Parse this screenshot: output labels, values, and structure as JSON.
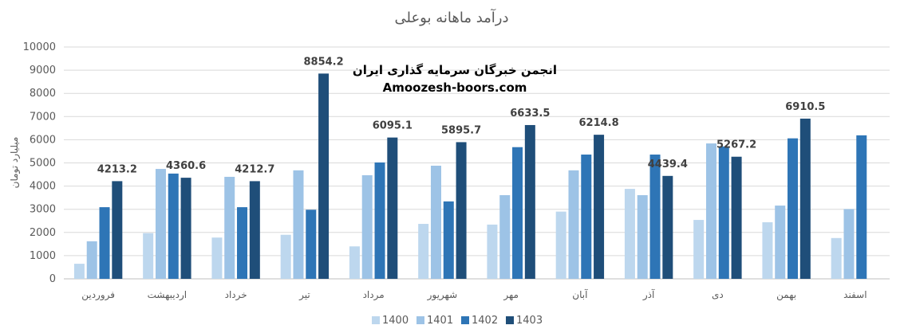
{
  "chart_data": {
    "type": "bar",
    "title": "درآمد ماهانه بوعلی",
    "ylabel": "میلیارد تومان",
    "xlabel": "",
    "ylim": [
      0,
      10000
    ],
    "yticks": [
      "0",
      "1000",
      "2000",
      "3000",
      "4000",
      "5000",
      "6000",
      "7000",
      "8000",
      "9000",
      "10000"
    ],
    "grid": true,
    "legend_position": "bottom",
    "categories": [
      "فروردین",
      "اردیبهشت",
      "خرداد",
      "تیر",
      "مرداد",
      "شهریور",
      "مهر",
      "آبان",
      "آذر",
      "دی",
      "بهمن",
      "اسفند"
    ],
    "series": [
      {
        "name": "1400",
        "color": "#bdd7ee",
        "values": [
          650,
          1970,
          1780,
          1900,
          1400,
          2370,
          2340,
          2900,
          3880,
          2540,
          2440,
          1760
        ]
      },
      {
        "name": "1401",
        "color": "#9dc3e6",
        "values": [
          1620,
          4740,
          4400,
          4680,
          4470,
          4880,
          3610,
          4680,
          3610,
          5840,
          3160,
          3010
        ]
      },
      {
        "name": "1402",
        "color": "#2e75b6",
        "values": [
          3090,
          4540,
          3090,
          2980,
          5020,
          3340,
          5680,
          5360,
          5360,
          5710,
          6060,
          6190
        ]
      },
      {
        "name": "1403",
        "color": "#1f4e79",
        "values": [
          4213.2,
          4360.6,
          4212.7,
          8854.2,
          6095.1,
          5895.7,
          6633.5,
          6214.8,
          4439.4,
          5267.2,
          6910.5,
          null
        ]
      }
    ],
    "data_labels": [
      "4213.2",
      "4360.6",
      "4212.7",
      "8854.2",
      "6095.1",
      "5895.7",
      "6633.5",
      "6214.8",
      "4439.4",
      "5267.2",
      "6910.5",
      ""
    ]
  },
  "watermark": {
    "line1": "انجمن خبرگان سرمایه گذاری ایران",
    "line2": "Amoozesh-boors.com"
  }
}
